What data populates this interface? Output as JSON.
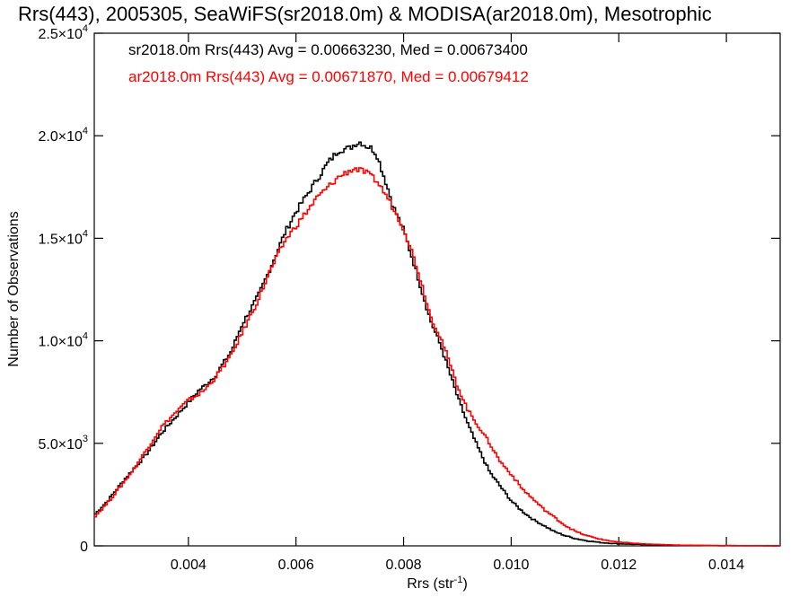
{
  "chart_data": {
    "type": "line",
    "title": "Rrs(443), 2005305, SeaWiFS(sr2018.0m) & MODISA(ar2018.0m), Mesotrophic",
    "xlabel": "Rrs (str",
    "xlabel_sup": "-1",
    "xlabel_end": ")",
    "ylabel": "Number of Observations",
    "xlim": [
      0.00225,
      0.015
    ],
    "ylim": [
      0,
      25000
    ],
    "x_ticks": [
      {
        "value": 0.004,
        "label": "0.004"
      },
      {
        "value": 0.006,
        "label": "0.006"
      },
      {
        "value": 0.008,
        "label": "0.008"
      },
      {
        "value": 0.01,
        "label": "0.010"
      },
      {
        "value": 0.012,
        "label": "0.012"
      },
      {
        "value": 0.014,
        "label": "0.014"
      }
    ],
    "y_ticks": [
      {
        "value": 0,
        "mant": "0",
        "exp": ""
      },
      {
        "value": 5000,
        "mant": "5.0×10",
        "exp": "3"
      },
      {
        "value": 10000,
        "mant": "1.0×10",
        "exp": "4"
      },
      {
        "value": 15000,
        "mant": "1.5×10",
        "exp": "4"
      },
      {
        "value": 20000,
        "mant": "2.0×10",
        "exp": "4"
      },
      {
        "value": 25000,
        "mant": "2.5×10",
        "exp": "4"
      }
    ],
    "legend": "top-left",
    "series": [
      {
        "name": "sr2018.0m Rrs(443) Avg = 0.00663230, Med = 0.00673400",
        "color": "#000000",
        "x": [
          0.00225,
          0.0025,
          0.0028,
          0.003,
          0.0032,
          0.0035,
          0.0038,
          0.004,
          0.0042,
          0.0043,
          0.0045,
          0.0048,
          0.005,
          0.0053,
          0.0055,
          0.0058,
          0.006,
          0.0062,
          0.0064,
          0.0066,
          0.0068,
          0.007,
          0.0071,
          0.0072,
          0.0073,
          0.0074,
          0.0075,
          0.0077,
          0.0078,
          0.008,
          0.0082,
          0.0084,
          0.0085,
          0.0087,
          0.009,
          0.0092,
          0.0094,
          0.0096,
          0.0098,
          0.01,
          0.0102,
          0.0104,
          0.0106,
          0.0108,
          0.011,
          0.0112,
          0.0114,
          0.0117,
          0.012,
          0.0125,
          0.013,
          0.0135,
          0.014,
          0.015
        ],
        "y": [
          1500,
          2200,
          3200,
          3800,
          4400,
          5500,
          6400,
          7000,
          7600,
          7800,
          8300,
          9500,
          10800,
          12200,
          13400,
          15300,
          16300,
          17100,
          17900,
          18700,
          19300,
          19400,
          19600,
          19700,
          19500,
          19400,
          19100,
          17500,
          16600,
          15400,
          13700,
          11900,
          11000,
          9700,
          7300,
          5900,
          4700,
          3600,
          2900,
          2200,
          1700,
          1300,
          1000,
          700,
          500,
          350,
          250,
          150,
          100,
          60,
          30,
          20,
          10,
          5
        ]
      },
      {
        "name": "ar2018.0m Rrs(443) Avg = 0.00671870, Med = 0.00679412",
        "color": "#ff0000",
        "x": [
          0.00225,
          0.0025,
          0.0028,
          0.003,
          0.0032,
          0.0035,
          0.0038,
          0.004,
          0.0042,
          0.0043,
          0.0045,
          0.0048,
          0.005,
          0.0053,
          0.0055,
          0.0058,
          0.006,
          0.0062,
          0.0064,
          0.0066,
          0.0068,
          0.007,
          0.0071,
          0.0072,
          0.0073,
          0.0074,
          0.0075,
          0.0077,
          0.0078,
          0.008,
          0.0082,
          0.0084,
          0.0085,
          0.0087,
          0.009,
          0.0092,
          0.0094,
          0.0096,
          0.0098,
          0.01,
          0.0102,
          0.0104,
          0.0106,
          0.0108,
          0.011,
          0.0112,
          0.0114,
          0.0117,
          0.012,
          0.0125,
          0.013,
          0.0135,
          0.014,
          0.015
        ],
        "y": [
          1400,
          2100,
          3100,
          3800,
          4600,
          5800,
          6600,
          7100,
          7400,
          7600,
          8200,
          9300,
          10400,
          12000,
          13300,
          14900,
          15600,
          16300,
          17000,
          17500,
          18000,
          18300,
          18400,
          18300,
          18200,
          18000,
          17800,
          17000,
          16500,
          15500,
          14000,
          12200,
          11200,
          10100,
          7800,
          6600,
          5800,
          5000,
          4100,
          3500,
          2800,
          2300,
          1800,
          1400,
          1000,
          700,
          500,
          300,
          180,
          90,
          40,
          20,
          10,
          5
        ]
      }
    ]
  }
}
